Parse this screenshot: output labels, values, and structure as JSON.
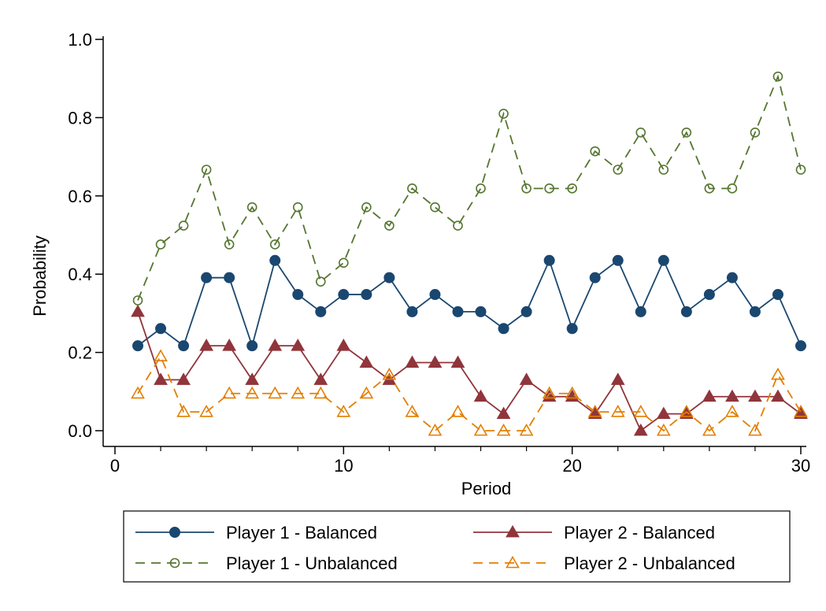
{
  "chart_data": {
    "type": "line",
    "title": "",
    "xlabel": "Period",
    "ylabel": "Probability",
    "xlim": [
      0,
      30.5
    ],
    "ylim": [
      0,
      1.0
    ],
    "x_ticks": [
      0,
      10,
      20,
      30
    ],
    "x_tick_labels": [
      "0",
      "10",
      "20",
      "30"
    ],
    "x_minor_ticks": [
      2,
      4,
      6,
      8,
      12,
      14,
      16,
      18,
      22,
      24,
      26,
      28
    ],
    "y_ticks": [
      0.0,
      0.2,
      0.4,
      0.6,
      0.8,
      1.0
    ],
    "y_tick_labels": [
      "0.0",
      "0.2",
      "0.4",
      "0.6",
      "0.8",
      "1.0"
    ],
    "grid": false,
    "legend_position": "bottom",
    "x": [
      1,
      2,
      3,
      4,
      5,
      6,
      7,
      8,
      9,
      10,
      11,
      12,
      13,
      14,
      15,
      16,
      17,
      18,
      19,
      20,
      21,
      22,
      23,
      24,
      25,
      26,
      27,
      28,
      29,
      30
    ],
    "series": [
      {
        "name": "Player 1 - Balanced",
        "color": "#1a476f",
        "dash": "solid",
        "marker": "filled-circle",
        "values": [
          0.217,
          0.261,
          0.217,
          0.391,
          0.391,
          0.217,
          0.435,
          0.348,
          0.304,
          0.348,
          0.348,
          0.391,
          0.304,
          0.348,
          0.304,
          0.304,
          0.261,
          0.304,
          0.435,
          0.261,
          0.391,
          0.435,
          0.304,
          0.435,
          0.304,
          0.348,
          0.391,
          0.304,
          0.348,
          0.217
        ]
      },
      {
        "name": "Player 2 - Balanced",
        "color": "#90353b",
        "dash": "solid",
        "marker": "filled-triangle",
        "values": [
          0.304,
          0.13,
          0.13,
          0.217,
          0.217,
          0.13,
          0.217,
          0.217,
          0.13,
          0.217,
          0.174,
          0.13,
          0.174,
          0.174,
          0.174,
          0.087,
          0.043,
          0.13,
          0.087,
          0.087,
          0.043,
          0.13,
          0.0,
          0.043,
          0.043,
          0.087,
          0.087,
          0.087,
          0.087,
          0.043
        ]
      },
      {
        "name": "Player 1 - Unbalanced",
        "color": "#55752f",
        "dash": "long-dash",
        "marker": "hollow-circle",
        "values": [
          0.333,
          0.476,
          0.524,
          0.667,
          0.476,
          0.571,
          0.476,
          0.571,
          0.381,
          0.429,
          0.571,
          0.524,
          0.619,
          0.571,
          0.524,
          0.619,
          0.81,
          0.619,
          0.619,
          0.619,
          0.714,
          0.667,
          0.762,
          0.667,
          0.762,
          0.619,
          0.619,
          0.762,
          0.905,
          0.667
        ]
      },
      {
        "name": "Player 2 - Unbalanced",
        "color": "#e37e00",
        "dash": "long-dash",
        "marker": "hollow-triangle",
        "values": [
          0.095,
          0.19,
          0.048,
          0.048,
          0.095,
          0.095,
          0.095,
          0.095,
          0.095,
          0.048,
          0.095,
          0.143,
          0.048,
          0.0,
          0.048,
          0.0,
          0.0,
          0.0,
          0.095,
          0.095,
          0.048,
          0.048,
          0.048,
          0.0,
          0.048,
          0.0,
          0.048,
          0.0,
          0.143,
          0.048
        ]
      }
    ],
    "legend_order": [
      0,
      1,
      2,
      3
    ]
  }
}
